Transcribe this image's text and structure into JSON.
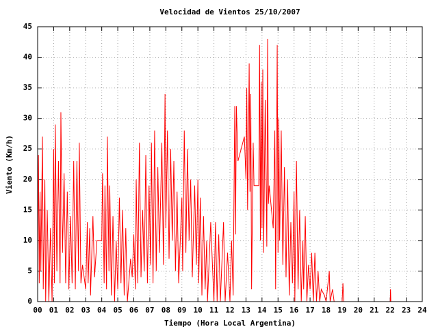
{
  "chart_data": {
    "type": "line",
    "title": "Velocidad de Vientos 25/10/2007",
    "xlabel": "Tiempo (Hora Local Argentina)",
    "ylabel": "Viento (Km/h)",
    "color": "#ff0000",
    "grid": true,
    "xlim": [
      0,
      24
    ],
    "ylim": [
      0,
      45
    ],
    "yticks": [
      0,
      5,
      10,
      15,
      20,
      25,
      30,
      35,
      40,
      45
    ],
    "xticks": [
      {
        "value": 0,
        "label": "00"
      },
      {
        "value": 1,
        "label": "01"
      },
      {
        "value": 2,
        "label": "02"
      },
      {
        "value": 3,
        "label": "03"
      },
      {
        "value": 4,
        "label": "04"
      },
      {
        "value": 5,
        "label": "05"
      },
      {
        "value": 6,
        "label": "06"
      },
      {
        "value": 7,
        "label": "07"
      },
      {
        "value": 8,
        "label": "08"
      },
      {
        "value": 9,
        "label": "09"
      },
      {
        "value": 10,
        "label": "10"
      },
      {
        "value": 11,
        "label": "11"
      },
      {
        "value": 12,
        "label": "12"
      },
      {
        "value": 13,
        "label": "13"
      },
      {
        "value": 14,
        "label": "14"
      },
      {
        "value": 15,
        "label": "15"
      },
      {
        "value": 16,
        "label": "16"
      },
      {
        "value": 17,
        "label": "17"
      },
      {
        "value": 18,
        "label": "18"
      },
      {
        "value": 19,
        "label": "19"
      },
      {
        "value": 20,
        "label": "20"
      },
      {
        "value": 21,
        "label": "21"
      },
      {
        "value": 22,
        "label": "22"
      },
      {
        "value": 23,
        "label": "23"
      },
      {
        "value": 24,
        "label": "24"
      }
    ],
    "x": [
      0.0,
      0.05,
      0.1,
      0.15,
      0.2,
      0.3,
      0.35,
      0.45,
      0.5,
      0.6,
      0.7,
      0.8,
      0.9,
      1.0,
      1.05,
      1.1,
      1.2,
      1.3,
      1.4,
      1.45,
      1.55,
      1.65,
      1.75,
      1.85,
      1.95,
      2.05,
      2.15,
      2.25,
      2.35,
      2.45,
      2.55,
      2.6,
      2.7,
      2.8,
      3.0,
      3.1,
      3.15,
      3.25,
      3.3,
      3.45,
      3.55,
      3.7,
      4.0,
      4.05,
      4.15,
      4.2,
      4.3,
      4.35,
      4.45,
      4.5,
      4.6,
      4.7,
      4.8,
      4.9,
      5.0,
      5.1,
      5.2,
      5.3,
      5.4,
      5.5,
      5.6,
      5.8,
      5.9,
      6.0,
      6.1,
      6.15,
      6.25,
      6.35,
      6.45,
      6.55,
      6.65,
      6.75,
      6.85,
      6.95,
      7.05,
      7.1,
      7.2,
      7.3,
      7.4,
      7.5,
      7.6,
      7.75,
      7.85,
      7.95,
      8.0,
      8.1,
      8.2,
      8.3,
      8.4,
      8.5,
      8.6,
      8.7,
      8.8,
      9.0,
      9.05,
      9.15,
      9.25,
      9.35,
      9.45,
      9.55,
      9.65,
      9.8,
      9.9,
      10.0,
      10.05,
      10.15,
      10.25,
      10.35,
      10.45,
      10.55,
      10.6,
      10.8,
      11.0,
      11.1,
      11.2,
      11.3,
      11.4,
      11.6,
      11.7,
      11.85,
      12.0,
      12.1,
      12.2,
      12.3,
      12.35,
      12.4,
      12.5,
      12.9,
      13.0,
      13.05,
      13.1,
      13.15,
      13.2,
      13.25,
      13.3,
      13.35,
      13.45,
      13.5,
      13.8,
      13.85,
      13.9,
      13.95,
      14.0,
      14.05,
      14.1,
      14.2,
      14.3,
      14.35,
      14.4,
      14.45,
      14.7,
      14.8,
      14.85,
      14.95,
      15.0,
      15.05,
      15.1,
      15.2,
      15.3,
      15.4,
      15.5,
      15.6,
      15.7,
      15.8,
      15.9,
      16.0,
      16.05,
      16.15,
      16.25,
      16.35,
      16.45,
      16.55,
      16.6,
      16.7,
      16.8,
      16.9,
      17.0,
      17.1,
      17.2,
      17.3,
      17.4,
      17.5,
      17.6,
      17.7,
      17.9,
      18.0,
      18.2,
      18.25,
      18.4,
      18.5,
      19.0,
      19.05,
      19.1,
      20.5,
      22.0,
      22.02,
      22.04
    ],
    "values": [
      8,
      24,
      3,
      18,
      5,
      27,
      2,
      20,
      0,
      15,
      0,
      12,
      0,
      25,
      3,
      29,
      5,
      23,
      3,
      31,
      8,
      21,
      3,
      18,
      2,
      14,
      3,
      23,
      2,
      23,
      5,
      26,
      3,
      6,
      2,
      13,
      3,
      12,
      1,
      14,
      4,
      10,
      10,
      21,
      3,
      19,
      2,
      27,
      5,
      19,
      1,
      14,
      0,
      10,
      2,
      17,
      3,
      15,
      1,
      12,
      0,
      7,
      4,
      11,
      2,
      20,
      3,
      26,
      4,
      15,
      5,
      24,
      3,
      19,
      6,
      26,
      3,
      28,
      5,
      22,
      8,
      26,
      6,
      34,
      12,
      28,
      7,
      25,
      10,
      23,
      5,
      18,
      3,
      17,
      5,
      28,
      8,
      25,
      10,
      20,
      4,
      19,
      6,
      20,
      3,
      17,
      1,
      14,
      2,
      10,
      0,
      13,
      0,
      13,
      0,
      11,
      0,
      13,
      0,
      8,
      0,
      10,
      1,
      32,
      11,
      32,
      23,
      27,
      20,
      35,
      15,
      25,
      39,
      18,
      34,
      2,
      26,
      19,
      19,
      42,
      10,
      36,
      12,
      38,
      8,
      33,
      9,
      43,
      16,
      19,
      12,
      28,
      2,
      42,
      8,
      30,
      10,
      28,
      6,
      22,
      4,
      20,
      1,
      13,
      3,
      18,
      0,
      23,
      2,
      15,
      0,
      10,
      2,
      14,
      0,
      6,
      2,
      8,
      0,
      8,
      0,
      5,
      0,
      2,
      1,
      0,
      5,
      0,
      2,
      0,
      0,
      3,
      0,
      null,
      0,
      2,
      0
    ]
  }
}
